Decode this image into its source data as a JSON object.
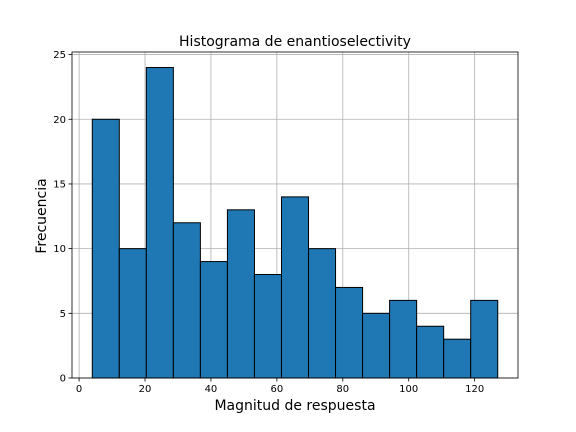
{
  "chart_data": {
    "type": "bar",
    "title": "Histograma de enantioselectivity",
    "xlabel": "Magnitud de respuesta",
    "ylabel": "Frecuencia",
    "bin_edges": [
      4.0,
      12.2,
      20.4,
      28.6,
      36.8,
      45.0,
      53.2,
      61.4,
      69.6,
      77.8,
      86.0,
      94.2,
      102.4,
      110.6,
      118.8,
      127.0
    ],
    "values": [
      20,
      10,
      24,
      12,
      9,
      13,
      8,
      14,
      10,
      7,
      5,
      6,
      4,
      3,
      6
    ],
    "xlim": [
      -2.15,
      133.15
    ],
    "ylim": [
      0,
      25.2
    ],
    "xticks": [
      0,
      20,
      40,
      60,
      80,
      100,
      120
    ],
    "yticks": [
      0,
      5,
      10,
      15,
      20,
      25
    ],
    "grid": true,
    "bar_color": "#1f77b4",
    "edge_color": "#000000"
  }
}
